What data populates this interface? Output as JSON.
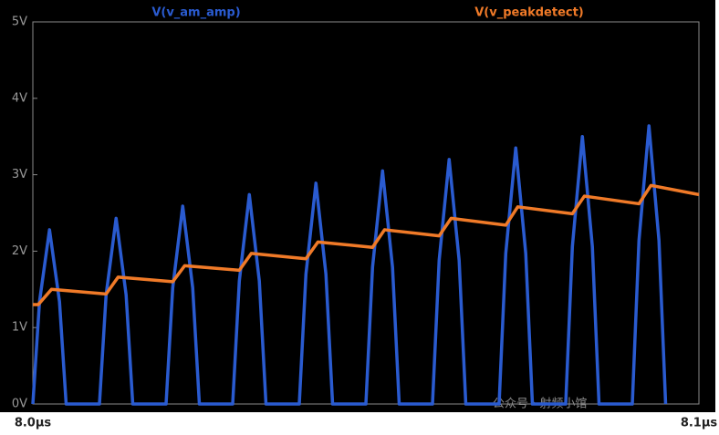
{
  "chart_data": {
    "type": "line",
    "series": [
      {
        "name": "V(v_am_amp)",
        "color": "#2a5bd0",
        "x": [
          8.0,
          8.001,
          8.0025,
          8.004,
          8.005,
          8.01,
          8.011,
          8.0125,
          8.014,
          8.015,
          8.02,
          8.021,
          8.0225,
          8.024,
          8.025,
          8.03,
          8.031,
          8.0325,
          8.034,
          8.035,
          8.04,
          8.041,
          8.0425,
          8.044,
          8.045,
          8.05,
          8.051,
          8.0525,
          8.054,
          8.055,
          8.06,
          8.061,
          8.0625,
          8.064,
          8.065,
          8.07,
          8.071,
          8.0725,
          8.074,
          8.075,
          8.08,
          8.081,
          8.0825,
          8.084,
          8.085,
          8.09,
          8.091,
          8.0925,
          8.094,
          8.095
        ],
        "values": [
          0,
          1.34,
          2.28,
          1.34,
          0,
          0,
          1.43,
          2.43,
          1.43,
          0,
          0,
          1.52,
          2.59,
          1.52,
          0,
          0,
          1.61,
          2.74,
          1.61,
          0,
          0,
          1.7,
          2.89,
          1.7,
          0,
          0,
          1.79,
          3.05,
          1.79,
          0,
          0,
          1.88,
          3.2,
          1.88,
          0,
          0,
          1.97,
          3.35,
          1.97,
          0,
          0,
          2.06,
          3.5,
          2.06,
          0,
          0,
          2.14,
          3.64,
          2.14,
          0
        ]
      },
      {
        "name": "V(v_peakdetect)",
        "color": "#f07a28",
        "x": [
          8.0,
          8.0008,
          8.0028,
          8.011,
          8.0128,
          8.021,
          8.0228,
          8.031,
          8.0328,
          8.041,
          8.0428,
          8.051,
          8.0528,
          8.061,
          8.0628,
          8.071,
          8.0728,
          8.081,
          8.0828,
          8.091,
          8.0928,
          8.1
        ],
        "values": [
          1.3,
          1.3,
          1.5,
          1.44,
          1.66,
          1.6,
          1.81,
          1.75,
          1.97,
          1.9,
          2.12,
          2.05,
          2.28,
          2.2,
          2.43,
          2.34,
          2.58,
          2.49,
          2.72,
          2.62,
          2.86,
          2.74
        ]
      }
    ],
    "xlim": [
      8.0,
      8.1
    ],
    "xticks": [
      {
        "value": 8.0,
        "label": "8.0µs"
      },
      {
        "value": 8.1,
        "label": "8.1µs"
      }
    ],
    "ylim": [
      0,
      5
    ],
    "yticks": [
      {
        "value": 0,
        "label": "0V"
      },
      {
        "value": 1,
        "label": "1V"
      },
      {
        "value": 2,
        "label": "2V"
      },
      {
        "value": 3,
        "label": "3V"
      },
      {
        "value": 4,
        "label": "4V"
      },
      {
        "value": 5,
        "label": "5V"
      }
    ],
    "grid": false,
    "watermark": "公众号 · 射频小馆"
  }
}
